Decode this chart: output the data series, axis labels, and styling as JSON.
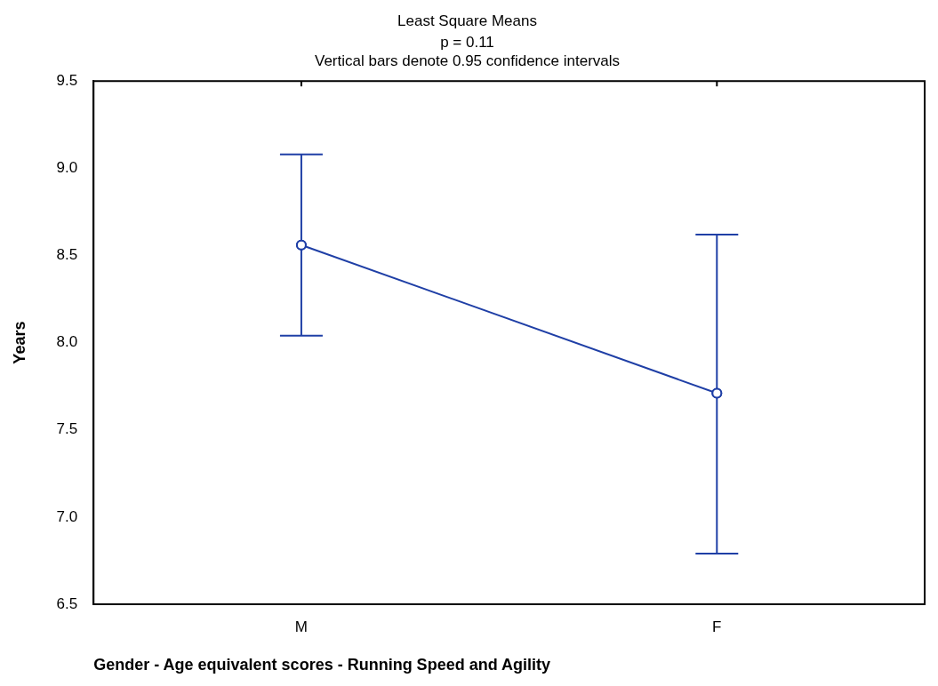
{
  "chart_data": {
    "type": "line",
    "title": "Least Square Means",
    "subtitle": "p = 0.11",
    "annotations": [
      "Vertical bars denote 0.95 confidence intervals"
    ],
    "xlabel": "Gender - Age equivalent scores - Running Speed and Agility",
    "ylabel": "Years",
    "categories": [
      "M",
      "F"
    ],
    "series": [
      {
        "color": "#1f3fa6",
        "values": [
          8.56,
          7.71
        ],
        "errors": [
          [
            8.04,
            9.08
          ],
          [
            6.79,
            8.62
          ]
        ]
      }
    ],
    "ylim": [
      6.5,
      9.5
    ],
    "yticks": [
      {
        "value": 6.5,
        "label": "6.5"
      },
      {
        "value": 7,
        "label": "7.0"
      },
      {
        "value": 7.5,
        "label": "7.5"
      },
      {
        "value": 8,
        "label": "8.0"
      },
      {
        "value": 8.5,
        "label": "8.5"
      },
      {
        "value": 9,
        "label": "9.0"
      },
      {
        "value": 9.5,
        "label": "9.5"
      }
    ],
    "grid": false,
    "legend": false,
    "marker": "circle",
    "line_style": "solid"
  }
}
